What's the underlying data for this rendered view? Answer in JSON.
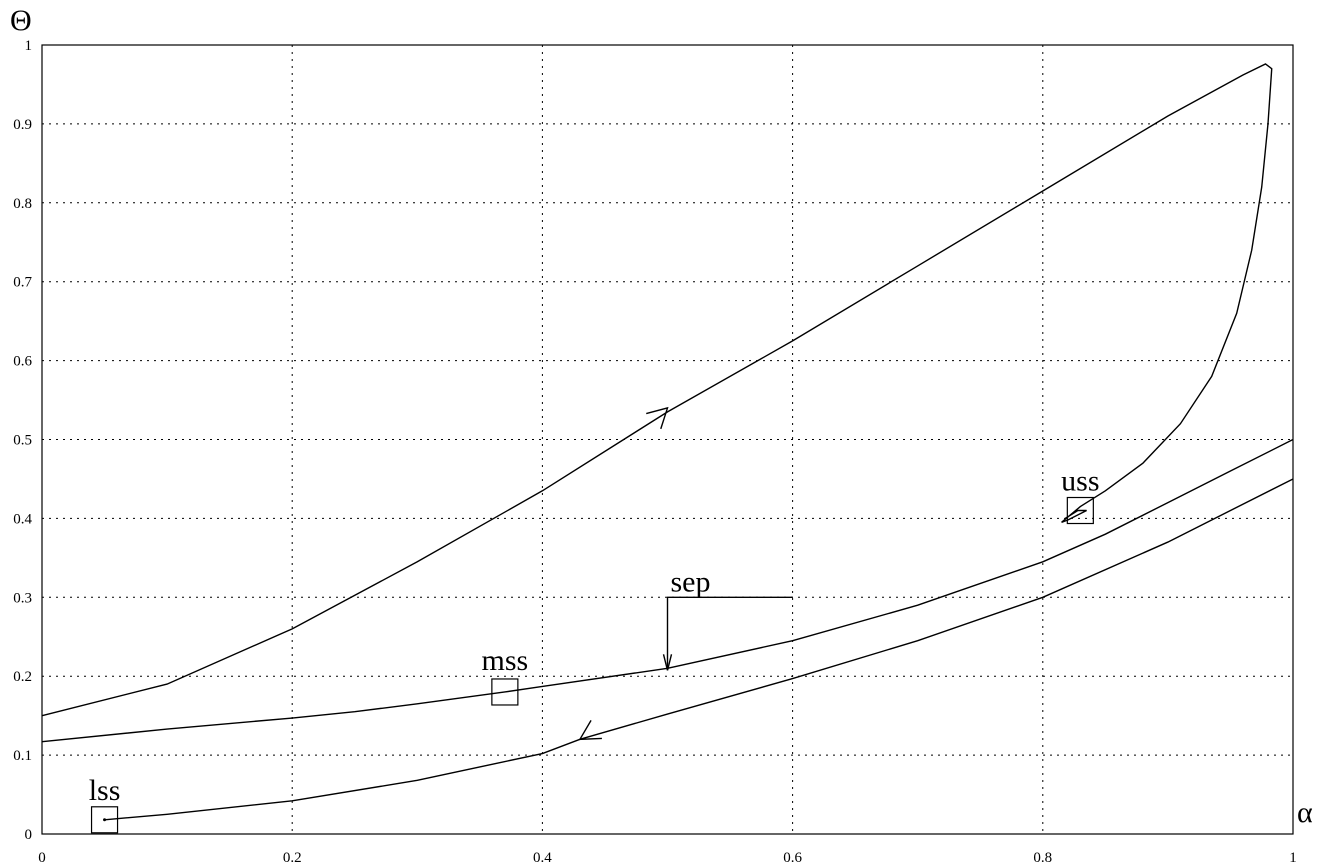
{
  "chart_data": {
    "type": "line",
    "xlabel": "α",
    "ylabel": "Θ",
    "xlim": [
      0,
      1
    ],
    "ylim": [
      0,
      1
    ],
    "grid": true,
    "xticks": [
      "0",
      "0.2",
      "0.4",
      "0.6",
      "0.8",
      "1"
    ],
    "yticks": [
      "0",
      "0.1",
      "0.2",
      "0.3",
      "0.4",
      "0.5",
      "0.6",
      "0.7",
      "0.8",
      "0.9",
      "1"
    ],
    "series": [
      {
        "points": [
          [
            0,
            0.15
          ],
          [
            0.1,
            0.19
          ],
          [
            0.2,
            0.26
          ],
          [
            0.3,
            0.345
          ],
          [
            0.4,
            0.435
          ],
          [
            0.5,
            0.535
          ],
          [
            0.6,
            0.625
          ],
          [
            0.7,
            0.72
          ],
          [
            0.8,
            0.815
          ],
          [
            0.9,
            0.91
          ],
          [
            0.96,
            0.962
          ],
          [
            0.978,
            0.976
          ],
          [
            0.983,
            0.97
          ],
          [
            0.98,
            0.9
          ],
          [
            0.975,
            0.82
          ],
          [
            0.967,
            0.74
          ],
          [
            0.955,
            0.66
          ],
          [
            0.935,
            0.58
          ],
          [
            0.91,
            0.52
          ],
          [
            0.88,
            0.47
          ],
          [
            0.85,
            0.435
          ],
          [
            0.83,
            0.415
          ],
          [
            0.815,
            0.395
          ],
          [
            0.82,
            0.398
          ],
          [
            0.835,
            0.41
          ],
          [
            0.828,
            0.41
          ],
          [
            0.818,
            0.4
          ]
        ]
      },
      {
        "points": [
          [
            0,
            0.117
          ],
          [
            0.1,
            0.133
          ],
          [
            0.2,
            0.147
          ],
          [
            0.25,
            0.155
          ],
          [
            0.3,
            0.165
          ],
          [
            0.37,
            0.18
          ],
          [
            0.4,
            0.187
          ],
          [
            0.5,
            0.21
          ],
          [
            0.6,
            0.245
          ],
          [
            0.7,
            0.29
          ],
          [
            0.8,
            0.345
          ],
          [
            0.85,
            0.38
          ],
          [
            0.9,
            0.42
          ],
          [
            0.95,
            0.46
          ],
          [
            1,
            0.5
          ]
        ]
      },
      {
        "points": [
          [
            0.05,
            0.018
          ],
          [
            0.1,
            0.025
          ],
          [
            0.2,
            0.042
          ],
          [
            0.3,
            0.068
          ],
          [
            0.4,
            0.102
          ],
          [
            0.43,
            0.12
          ],
          [
            0.5,
            0.152
          ],
          [
            0.6,
            0.197
          ],
          [
            0.7,
            0.245
          ],
          [
            0.8,
            0.3
          ],
          [
            0.9,
            0.37
          ],
          [
            1,
            0.45
          ]
        ]
      }
    ],
    "annotations": [
      {
        "text": "lss",
        "x": 0.05,
        "y": 0.018
      },
      {
        "text": "mss",
        "x": 0.37,
        "y": 0.18
      },
      {
        "text": "uss",
        "x": 0.83,
        "y": 0.41
      },
      {
        "text": "sep",
        "x": 0.5,
        "y": 0.21
      }
    ]
  }
}
